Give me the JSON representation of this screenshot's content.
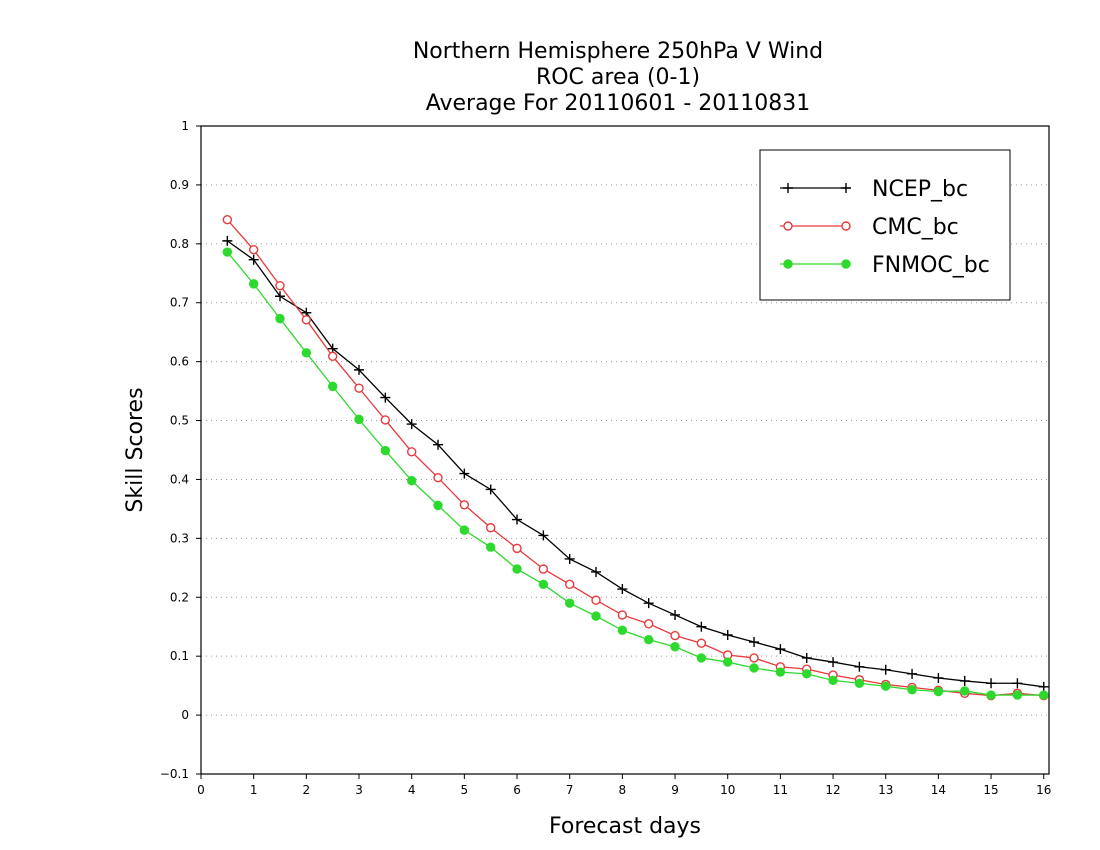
{
  "chart_data": {
    "type": "line",
    "title": [
      "Northern Hemisphere 250hPa V Wind",
      "ROC area (0-1)",
      "Average For 20110601 - 20110831"
    ],
    "xlabel": "Forecast days",
    "ylabel": "Skill Scores",
    "xlim": [
      0,
      16.1
    ],
    "ylim": [
      -0.1,
      1
    ],
    "xticks": [
      0,
      1,
      2,
      3,
      4,
      5,
      6,
      7,
      8,
      9,
      10,
      11,
      12,
      13,
      14,
      15,
      16
    ],
    "yticks": [
      -0.1,
      0,
      0.1,
      0.2,
      0.3,
      0.4,
      0.5,
      0.6,
      0.7,
      0.8,
      0.9,
      1
    ],
    "ytick_labels": [
      "−0.1",
      "0",
      "0.1",
      "0.2",
      "0.3",
      "0.4",
      "0.5",
      "0.6",
      "0.7",
      "0.8",
      "0.9",
      "1"
    ],
    "grid": "horizontal-dotted",
    "legend_position": "top-right",
    "x": [
      0.5,
      1,
      1.5,
      2,
      2.5,
      3,
      3.5,
      4,
      4.5,
      5,
      5.5,
      6,
      6.5,
      7,
      7.5,
      8,
      8.5,
      9,
      9.5,
      10,
      10.5,
      11,
      11.5,
      12,
      12.5,
      13,
      13.5,
      14,
      14.5,
      15,
      15.5,
      16
    ],
    "series": [
      {
        "name": "NCEP_bc",
        "color": "#000000",
        "marker": "plus",
        "values": [
          0.805,
          0.773,
          0.711,
          0.683,
          0.622,
          0.586,
          0.539,
          0.494,
          0.459,
          0.41,
          0.383,
          0.332,
          0.305,
          0.265,
          0.243,
          0.214,
          0.19,
          0.17,
          0.15,
          0.136,
          0.124,
          0.112,
          0.097,
          0.09,
          0.082,
          0.077,
          0.07,
          0.063,
          0.058,
          0.054,
          0.054,
          0.048
        ]
      },
      {
        "name": "CMC_bc",
        "color": "#e8393c",
        "marker": "open-circle",
        "values": [
          0.841,
          0.79,
          0.729,
          0.671,
          0.609,
          0.555,
          0.501,
          0.447,
          0.403,
          0.357,
          0.318,
          0.283,
          0.248,
          0.222,
          0.195,
          0.17,
          0.155,
          0.135,
          0.122,
          0.102,
          0.097,
          0.082,
          0.078,
          0.068,
          0.06,
          0.052,
          0.047,
          0.042,
          0.037,
          0.033,
          0.037,
          0.033
        ]
      },
      {
        "name": "FNMOC_bc",
        "color": "#2ed92e",
        "marker": "filled-circle",
        "values": [
          0.786,
          0.732,
          0.673,
          0.615,
          0.558,
          0.502,
          0.449,
          0.398,
          0.356,
          0.314,
          0.285,
          0.248,
          0.222,
          0.19,
          0.168,
          0.144,
          0.128,
          0.116,
          0.097,
          0.09,
          0.08,
          0.073,
          0.07,
          0.059,
          0.054,
          0.049,
          0.043,
          0.04,
          0.041,
          0.034,
          0.034,
          0.034
        ]
      }
    ]
  }
}
